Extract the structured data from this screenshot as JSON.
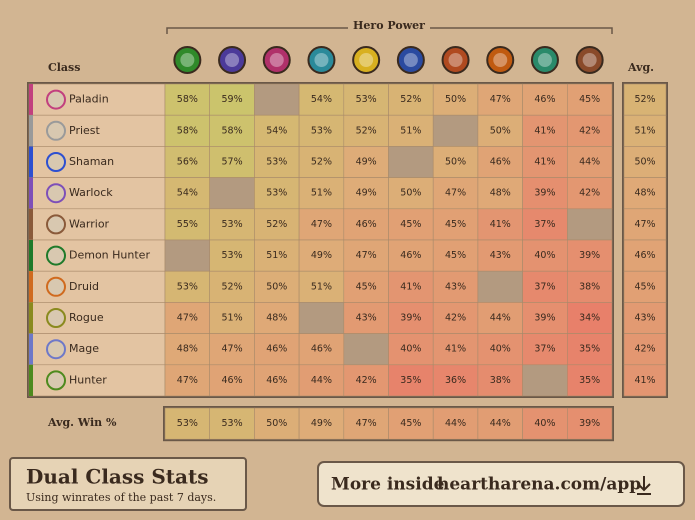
{
  "header": {
    "group_title": "Hero Power",
    "class_label": "Class",
    "avg_label": "Avg.",
    "avg_win_label": "Avg. Win %"
  },
  "table": {
    "rows": [
      {
        "class": "Paladin",
        "color": "#c2407e",
        "cells": [
          "58%",
          "59%",
          null,
          "54%",
          "53%",
          "52%",
          "50%",
          "47%",
          "46%",
          "45%"
        ],
        "avg": "52%"
      },
      {
        "class": "Priest",
        "color": "#9a9a9a",
        "cells": [
          "58%",
          "58%",
          "54%",
          "53%",
          "52%",
          "51%",
          null,
          "50%",
          "41%",
          "42%"
        ],
        "avg": "51%"
      },
      {
        "class": "Shaman",
        "color": "#2d4fd0",
        "cells": [
          "56%",
          "57%",
          "53%",
          "52%",
          "49%",
          null,
          "50%",
          "46%",
          "41%",
          "44%"
        ],
        "avg": "50%"
      },
      {
        "class": "Warlock",
        "color": "#7d4fb8",
        "cells": [
          "54%",
          null,
          "53%",
          "51%",
          "49%",
          "50%",
          "47%",
          "48%",
          "39%",
          "42%"
        ],
        "avg": "48%"
      },
      {
        "class": "Warrior",
        "color": "#8a5a3a",
        "cells": [
          "55%",
          "53%",
          "52%",
          "47%",
          "46%",
          "45%",
          "45%",
          "41%",
          "37%",
          null
        ],
        "avg": "47%"
      },
      {
        "class": "Demon Hunter",
        "color": "#1f7a2a",
        "cells": [
          null,
          "53%",
          "51%",
          "49%",
          "47%",
          "46%",
          "45%",
          "43%",
          "40%",
          "39%"
        ],
        "avg": "46%"
      },
      {
        "class": "Druid",
        "color": "#d06a1e",
        "cells": [
          "53%",
          "52%",
          "50%",
          "51%",
          "45%",
          "41%",
          "43%",
          null,
          "37%",
          "38%"
        ],
        "avg": "45%"
      },
      {
        "class": "Rogue",
        "color": "#8a8a1e",
        "cells": [
          "47%",
          "51%",
          "48%",
          null,
          "43%",
          "39%",
          "42%",
          "44%",
          "39%",
          "34%"
        ],
        "avg": "43%"
      },
      {
        "class": "Mage",
        "color": "#6e78c8",
        "cells": [
          "48%",
          "47%",
          "46%",
          "46%",
          null,
          "40%",
          "41%",
          "40%",
          "37%",
          "35%"
        ],
        "avg": "42%"
      },
      {
        "class": "Hunter",
        "color": "#4e8a1e",
        "cells": [
          "47%",
          "46%",
          "46%",
          "44%",
          "42%",
          "35%",
          "36%",
          "38%",
          null,
          "35%"
        ],
        "avg": "41%"
      }
    ],
    "avg_win": [
      "53%",
      "53%",
      "50%",
      "49%",
      "47%",
      "45%",
      "44%",
      "44%",
      "40%",
      "39%"
    ]
  },
  "footer": {
    "title": "Dual Class Stats",
    "subtitle": "Using winrates of the past 7 days.",
    "cta_prefix": "More inside",
    "cta_link": "heartharena.com/app"
  }
}
